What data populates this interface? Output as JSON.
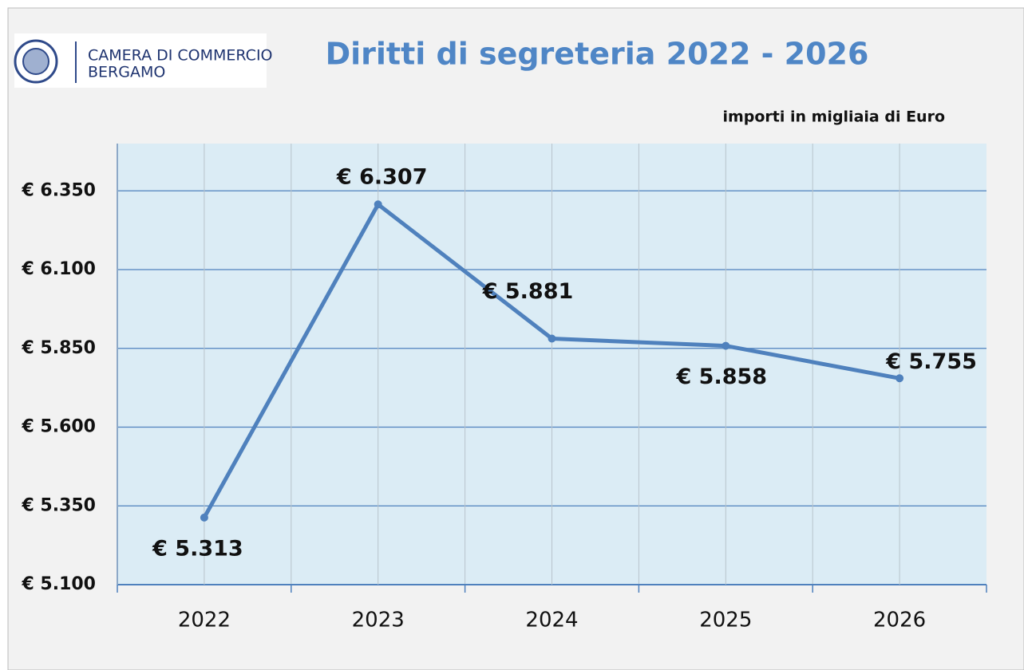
{
  "logo": {
    "line1": "CAMERA DI COMMERCIO",
    "line2": "BERGAMO"
  },
  "chart_data": {
    "type": "line",
    "title": "Diritti di segreteria 2022 - 2026",
    "subtitle": "importi in migliaia di Euro",
    "categories": [
      "2022",
      "2023",
      "2024",
      "2025",
      "2026"
    ],
    "series": [
      {
        "name": "Diritti di segreteria",
        "color": "#4f81bd",
        "values": [
          5313,
          6307,
          5881,
          5858,
          5755
        ],
        "value_labels": [
          "€ 5.313",
          "€ 6.307",
          "€ 5.881",
          "€ 5.858",
          "€ 5.755"
        ]
      }
    ],
    "ylim": [
      5100,
      6500
    ],
    "yticks": [
      {
        "value": 5100,
        "label": "€ 5.100"
      },
      {
        "value": 5350,
        "label": "€ 5.350"
      },
      {
        "value": 5600,
        "label": "€ 5.600"
      },
      {
        "value": 5850,
        "label": "€ 5.850"
      },
      {
        "value": 6100,
        "label": "€ 6.100"
      },
      {
        "value": 6350,
        "label": "€ 6.350"
      }
    ],
    "grid": true
  }
}
